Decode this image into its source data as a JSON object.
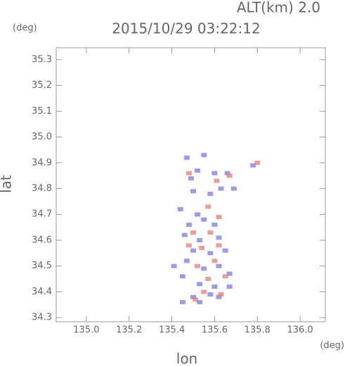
{
  "chart_data": {
    "type": "scatter",
    "title": "2015/10/29 03:22:12",
    "subtitle": "ALT(km) 2.0",
    "y_unit": "(deg)",
    "x_unit": "(deg)",
    "x_label": "lon",
    "y_label": "lat",
    "xlim": [
      134.859,
      136.118
    ],
    "ylim": [
      34.284,
      35.346
    ],
    "xticks": [
      {
        "value": 135.0,
        "label": "135.0"
      },
      135.2,
      135.4,
      135.6,
      135.8,
      {
        "value": 136.0,
        "label": "136.0"
      }
    ],
    "yticks": [
      34.3,
      34.4,
      34.5,
      34.6,
      34.7,
      34.8,
      34.9,
      {
        "value": 35.0,
        "label": "35.0"
      },
      35.1,
      35.2,
      35.3
    ],
    "series": [
      {
        "color": "#7a7ae6",
        "x": [
          135.55,
          135.47,
          135.52,
          135.49,
          135.6,
          135.66,
          135.63,
          135.58,
          135.69,
          135.78,
          135.5,
          135.44,
          135.52,
          135.55,
          135.6,
          135.48,
          135.46,
          135.53,
          135.62,
          135.5,
          135.58,
          135.65,
          135.47,
          135.55,
          135.62,
          135.67,
          135.45,
          135.53,
          135.6,
          135.67,
          135.5,
          135.58,
          135.45,
          135.53,
          135.62,
          135.41
        ],
        "values": [
          34.93,
          34.92,
          34.87,
          34.84,
          34.86,
          34.86,
          34.8,
          34.78,
          34.8,
          34.89,
          34.79,
          34.72,
          34.7,
          34.68,
          34.66,
          34.66,
          34.62,
          34.6,
          34.61,
          34.56,
          34.55,
          34.56,
          34.52,
          34.49,
          34.5,
          34.47,
          34.46,
          34.43,
          34.42,
          34.42,
          34.38,
          34.39,
          34.36,
          34.36,
          34.38,
          34.5
        ]
      },
      {
        "color": "#e87a7a",
        "x": [
          135.48,
          135.61,
          135.67,
          135.8,
          135.57,
          135.62,
          135.5,
          135.58,
          135.62,
          135.54,
          135.48,
          135.6,
          135.52,
          135.65,
          135.57,
          135.55,
          135.63,
          135.51
        ],
        "values": [
          34.86,
          34.83,
          34.85,
          34.9,
          34.73,
          34.69,
          34.63,
          34.63,
          34.58,
          34.57,
          34.58,
          34.52,
          34.5,
          34.46,
          34.45,
          34.4,
          34.39,
          34.37
        ]
      }
    ]
  }
}
